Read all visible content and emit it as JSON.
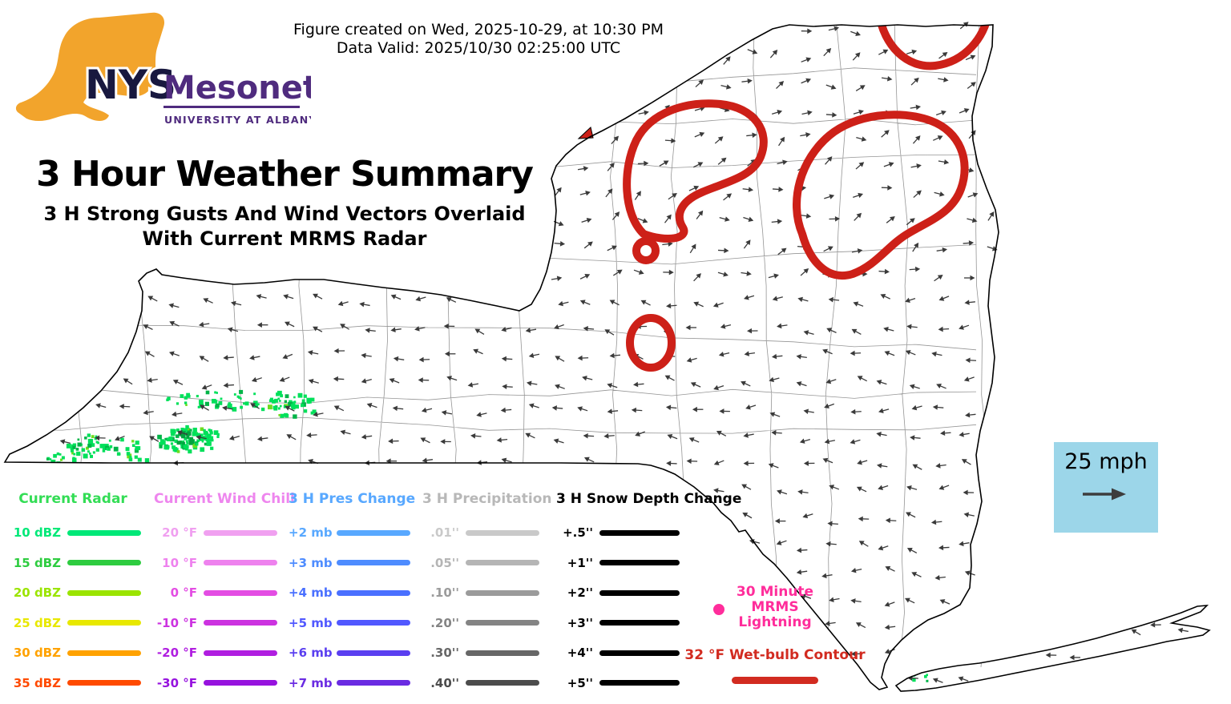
{
  "meta": {
    "created_line": "Figure created on Wed, 2025-10-29, at 10:30 PM",
    "valid_line": "Data Valid: 2025/10/30 02:25:00 UTC"
  },
  "logo": {
    "acronym": "NYS",
    "name": "Mesonet",
    "affiliation": "UNIVERSITY AT ALBANY",
    "state_color": "#F2A42C",
    "acronym_color": "#18183F",
    "brand_color": "#4F2B7E"
  },
  "title": "3 Hour Weather Summary",
  "subtitle": {
    "line1": "3 H Strong Gusts And Wind Vectors Overlaid",
    "line2": "With Current MRMS Radar"
  },
  "wind_reference": {
    "speed_label": "25 mph",
    "box_color": "#9CD6E9"
  },
  "map": {
    "state_outline_color": "#000000",
    "county_line_color": "#8A8A8A",
    "wind_vector_color": "#3A3A3A",
    "radar_color": "#00E05A",
    "contour_color": "#CD2018"
  },
  "legend": {
    "columns": [
      {
        "title": "Current Radar",
        "title_color": "#33DD55",
        "items": [
          {
            "label": "10 dBZ",
            "color": "#00E878"
          },
          {
            "label": "15 dBZ",
            "color": "#2ECC40"
          },
          {
            "label": "20 dBZ",
            "color": "#9BE400"
          },
          {
            "label": "25 dBZ",
            "color": "#E8E800"
          },
          {
            "label": "30 dBZ",
            "color": "#FFA200"
          },
          {
            "label": "35 dBZ",
            "color": "#FF4A00"
          }
        ]
      },
      {
        "title": "Current Wind Chill",
        "title_color": "#EE86EE",
        "items": [
          {
            "label": "20 °F",
            "color": "#F0A0F0"
          },
          {
            "label": "10 °F",
            "color": "#EE82EE"
          },
          {
            "label": "0 °F",
            "color": "#E34DE3"
          },
          {
            "label": "-10 °F",
            "color": "#CC33E0"
          },
          {
            "label": "-20 °F",
            "color": "#B01EE0"
          },
          {
            "label": "-30 °F",
            "color": "#9612DE"
          }
        ]
      },
      {
        "title": "3 H Pres Change",
        "title_color": "#58A8FF",
        "items": [
          {
            "label": "+2 mb",
            "color": "#58A8FF"
          },
          {
            "label": "+3 mb",
            "color": "#4E8CFF"
          },
          {
            "label": "+4 mb",
            "color": "#4A70FF"
          },
          {
            "label": "+5 mb",
            "color": "#5158FF"
          },
          {
            "label": "+6 mb",
            "color": "#5A3FF0"
          },
          {
            "label": "+7 mb",
            "color": "#6A2BE2"
          }
        ]
      },
      {
        "title": "3 H Precipitation",
        "title_color": "#B8B8B8",
        "items": [
          {
            "label": ".01''",
            "color": "#C9C9C9"
          },
          {
            "label": ".05''",
            "color": "#B5B5B5"
          },
          {
            "label": ".10''",
            "color": "#9B9B9B"
          },
          {
            "label": ".20''",
            "color": "#848484"
          },
          {
            "label": ".30''",
            "color": "#676767"
          },
          {
            "label": ".40''",
            "color": "#4C4C4C"
          }
        ]
      },
      {
        "title": "3 H Snow Depth Change",
        "title_color": "#000000",
        "items": [
          {
            "label": "+.5''",
            "color": "#000000"
          },
          {
            "label": "+1''",
            "color": "#000000"
          },
          {
            "label": "+2''",
            "color": "#000000"
          },
          {
            "label": "+3''",
            "color": "#000000"
          },
          {
            "label": "+4''",
            "color": "#000000"
          },
          {
            "label": "+5''",
            "color": "#000000"
          }
        ]
      }
    ],
    "lightning": {
      "label_lines": [
        "30 Minute",
        "MRMS",
        "Lightning"
      ],
      "color": "#FF2D9B"
    },
    "wetbulb": {
      "label": "32 °F Wet-bulb Contour",
      "color": "#D22B20"
    }
  }
}
